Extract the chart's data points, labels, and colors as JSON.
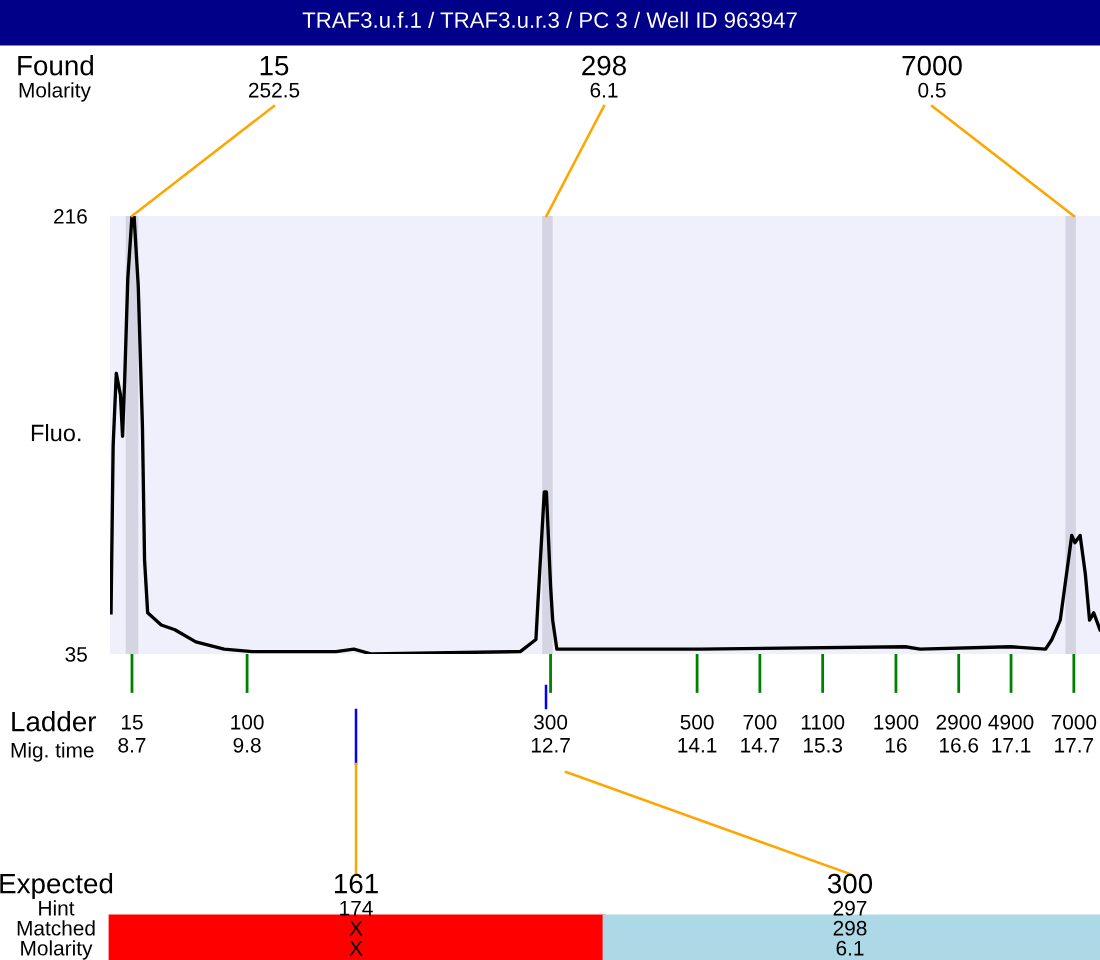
{
  "chart_data": {
    "type": "line",
    "title": "TRAF3.u.f.1 / TRAF3.u.r.3 / PC 3 / Well ID 963947",
    "ylabel": "Fluo.",
    "x": [
      8.5,
      8.52,
      8.55,
      8.59,
      8.61,
      8.63,
      8.66,
      8.7,
      8.72,
      8.76,
      8.8,
      8.82,
      8.85,
      8.98,
      9.11,
      9.31,
      9.58,
      9.85,
      10.65,
      10.82,
      10.99,
      12.41,
      12.56,
      12.58,
      12.64,
      12.66,
      12.7,
      12.72,
      12.76,
      14.13,
      16.09,
      16.23,
      17.09,
      17.43,
      17.49,
      17.57,
      17.63,
      17.68,
      17.71,
      17.76,
      17.81,
      17.85,
      17.89,
      17.95
    ],
    "series": [
      {
        "color": "#000000",
        "values": [
          52,
          121,
          151,
          142,
          125,
          148,
          190,
          216,
          216,
          187,
          129,
          74,
          52,
          47,
          45,
          40,
          37,
          36,
          36,
          37,
          35,
          36,
          41,
          57,
          102,
          102,
          63,
          49,
          37,
          37,
          38,
          37,
          38,
          37,
          41,
          49,
          68,
          84,
          81,
          84,
          68,
          49,
          52,
          45
        ]
      }
    ],
    "xlim": [
      8.49,
      17.95
    ],
    "ylim": [
      35,
      216
    ],
    "yticks": [
      35,
      216
    ],
    "xticks": [
      8.7,
      9.8,
      12.7,
      14.1,
      14.7,
      15.3,
      16,
      16.6,
      17.1,
      17.7
    ],
    "bands": [
      {
        "axis": "x",
        "from": 8.64,
        "to": 8.76,
        "color": "#d4d4e2"
      },
      {
        "axis": "x",
        "from": 12.62,
        "to": 12.72,
        "color": "#d4d4e2"
      },
      {
        "axis": "x",
        "from": 17.62,
        "to": 17.72,
        "color": "#d4d4e2"
      }
    ],
    "annotations": [
      {
        "text": "15",
        "x": 8.7,
        "y": 216
      },
      {
        "text": "298",
        "x": 12.66,
        "y": 216
      },
      {
        "text": "7000",
        "x": 17.7,
        "y": 216
      },
      {
        "text": "15",
        "x": 8.7,
        "y": 35
      },
      {
        "text": "100",
        "x": 9.8,
        "y": 35
      },
      {
        "text": "300",
        "x": 12.7,
        "y": 35
      },
      {
        "text": "500",
        "x": 14.1,
        "y": 35
      },
      {
        "text": "700",
        "x": 14.7,
        "y": 35
      },
      {
        "text": "1100",
        "x": 15.3,
        "y": 35
      },
      {
        "text": "1900",
        "x": 16,
        "y": 35
      },
      {
        "text": "2900",
        "x": 16.6,
        "y": 35
      },
      {
        "text": "4900",
        "x": 17.1,
        "y": 35
      },
      {
        "text": "7000",
        "x": 17.7,
        "y": 35
      },
      "252.5",
      "6.1",
      "0.5",
      "Found",
      "Molarity",
      "Ladder",
      "Mig. time",
      "Expected",
      "Hint",
      "Matched",
      "Molarity",
      "161",
      "174",
      "X",
      "X",
      "300",
      "297",
      "298",
      "6.1"
    ],
    "grid": false
  }
}
